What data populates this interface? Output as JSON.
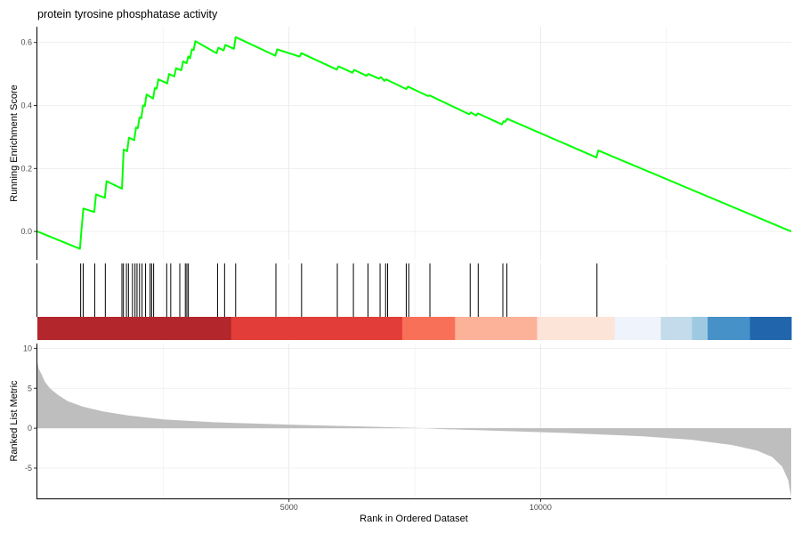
{
  "chart_data": {
    "type": "line",
    "title": "protein tyrosine phosphatase activity",
    "x_max": 14980,
    "xlabel": "Rank in Ordered Dataset",
    "x_ticks": [
      5000,
      10000
    ],
    "x_tick_labels": [
      "5000",
      "10000"
    ],
    "grid": true,
    "enrichment": {
      "ylabel": "Running Enrichment Score",
      "ylim": [
        -0.09,
        0.65
      ],
      "y_ticks": [
        0.0,
        0.2,
        0.4,
        0.6
      ],
      "y_tick_labels": [
        "0.0",
        "0.2",
        "0.4",
        "0.6"
      ],
      "line_color": "#00ff00",
      "points": [
        [
          0,
          0.0
        ],
        [
          845,
          -0.055
        ],
        [
          880,
          0.013
        ],
        [
          915,
          0.073
        ],
        [
          1130,
          0.062
        ],
        [
          1165,
          0.118
        ],
        [
          1340,
          0.107
        ],
        [
          1375,
          0.16
        ],
        [
          1680,
          0.136
        ],
        [
          1715,
          0.26
        ],
        [
          1785,
          0.255
        ],
        [
          1820,
          0.298
        ],
        [
          1925,
          0.29
        ],
        [
          1960,
          0.33
        ],
        [
          1995,
          0.328
        ],
        [
          2030,
          0.362
        ],
        [
          2065,
          0.36
        ],
        [
          2100,
          0.4
        ],
        [
          2135,
          0.398
        ],
        [
          2170,
          0.435
        ],
        [
          2300,
          0.422
        ],
        [
          2335,
          0.455
        ],
        [
          2370,
          0.453
        ],
        [
          2405,
          0.483
        ],
        [
          2580,
          0.47
        ],
        [
          2615,
          0.5
        ],
        [
          2720,
          0.492
        ],
        [
          2755,
          0.518
        ],
        [
          2860,
          0.512
        ],
        [
          2895,
          0.54
        ],
        [
          2965,
          0.534
        ],
        [
          3000,
          0.556
        ],
        [
          3035,
          0.55
        ],
        [
          3070,
          0.578
        ],
        [
          3105,
          0.576
        ],
        [
          3140,
          0.604
        ],
        [
          3560,
          0.566
        ],
        [
          3595,
          0.583
        ],
        [
          3700,
          0.575
        ],
        [
          3735,
          0.592
        ],
        [
          3905,
          0.58
        ],
        [
          3940,
          0.617
        ],
        [
          4730,
          0.558
        ],
        [
          4765,
          0.578
        ],
        [
          5210,
          0.555
        ],
        [
          5245,
          0.566
        ],
        [
          5950,
          0.514
        ],
        [
          5985,
          0.524
        ],
        [
          6260,
          0.504
        ],
        [
          6295,
          0.513
        ],
        [
          6540,
          0.494
        ],
        [
          6575,
          0.5
        ],
        [
          6790,
          0.485
        ],
        [
          6825,
          0.49
        ],
        [
          6895,
          0.478
        ],
        [
          6930,
          0.483
        ],
        [
          7330,
          0.452
        ],
        [
          7365,
          0.46
        ],
        [
          7760,
          0.43
        ],
        [
          7795,
          0.432
        ],
        [
          8580,
          0.372
        ],
        [
          8615,
          0.378
        ],
        [
          8720,
          0.368
        ],
        [
          8755,
          0.375
        ],
        [
          9230,
          0.34
        ],
        [
          9265,
          0.35
        ],
        [
          9300,
          0.348
        ],
        [
          9335,
          0.358
        ],
        [
          11110,
          0.235
        ],
        [
          11145,
          0.257
        ],
        [
          14980,
          0.0
        ]
      ]
    },
    "hits": [
      860,
      910,
      1140,
      1350,
      1680,
      1710,
      1770,
      1810,
      1890,
      1940,
      1980,
      2030,
      2080,
      2150,
      2240,
      2270,
      2310,
      2570,
      2650,
      2830,
      2940,
      2970,
      3000,
      3580,
      3720,
      3940,
      4740,
      5250,
      5960,
      6280,
      6570,
      6810,
      6920,
      6960,
      7330,
      7380,
      7800,
      8600,
      8760,
      9250,
      9330,
      11120
    ],
    "rank_bar": {
      "segments": [
        {
          "from": 0,
          "to": 3850,
          "color": "#b2262c"
        },
        {
          "from": 3850,
          "to": 7250,
          "color": "#e23d38"
        },
        {
          "from": 7250,
          "to": 8300,
          "color": "#f87058"
        },
        {
          "from": 8300,
          "to": 9930,
          "color": "#fcb299"
        },
        {
          "from": 9930,
          "to": 11470,
          "color": "#fde4d8"
        },
        {
          "from": 11470,
          "to": 12390,
          "color": "#eff3fb"
        },
        {
          "from": 12390,
          "to": 13010,
          "color": "#c3dbea"
        },
        {
          "from": 13010,
          "to": 13320,
          "color": "#9ecae1"
        },
        {
          "from": 13320,
          "to": 14160,
          "color": "#4591c8"
        },
        {
          "from": 14160,
          "to": 14980,
          "color": "#2166ac"
        }
      ]
    },
    "ranked_list": {
      "ylabel": "Ranked List Metric",
      "ylim": [
        -8.9,
        10.6
      ],
      "y_ticks": [
        -5,
        0,
        5,
        10
      ],
      "y_tick_labels": [
        "-5",
        "0",
        "5",
        "10"
      ],
      "fill_color": "#bebebe",
      "points": [
        [
          0,
          8.2
        ],
        [
          30,
          7.4
        ],
        [
          80,
          6.8
        ],
        [
          150,
          5.8
        ],
        [
          250,
          5.0
        ],
        [
          400,
          4.2
        ],
        [
          600,
          3.4
        ],
        [
          900,
          2.7
        ],
        [
          1300,
          2.1
        ],
        [
          1800,
          1.6
        ],
        [
          2500,
          1.1
        ],
        [
          3500,
          0.75
        ],
        [
          5000,
          0.45
        ],
        [
          6500,
          0.2
        ],
        [
          7500,
          0.05
        ],
        [
          8000,
          -0.1
        ],
        [
          9000,
          -0.3
        ],
        [
          10500,
          -0.6
        ],
        [
          12000,
          -1.0
        ],
        [
          13000,
          -1.45
        ],
        [
          13800,
          -2.1
        ],
        [
          14300,
          -2.8
        ],
        [
          14600,
          -3.6
        ],
        [
          14800,
          -4.8
        ],
        [
          14920,
          -6.5
        ],
        [
          14980,
          -8.6
        ]
      ]
    }
  }
}
